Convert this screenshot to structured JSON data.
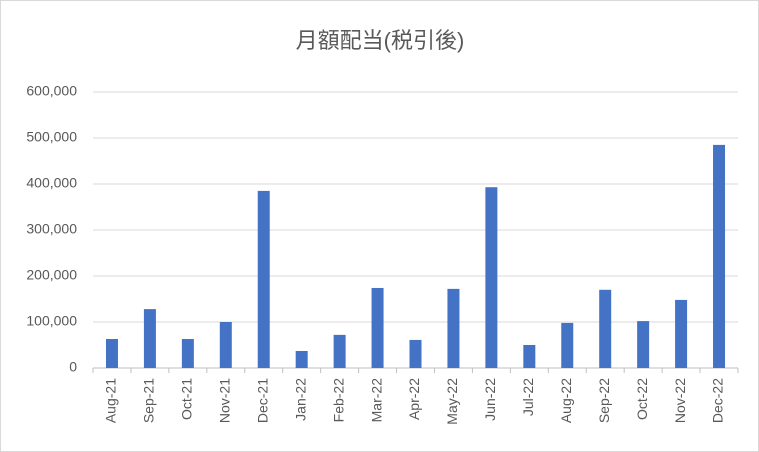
{
  "chart_data": {
    "type": "bar",
    "title": "月額配当(税引後)",
    "categories": [
      "Aug-21",
      "Sep-21",
      "Oct-21",
      "Nov-21",
      "Dec-21",
      "Jan-22",
      "Feb-22",
      "Mar-22",
      "Apr-22",
      "May-22",
      "Jun-22",
      "Jul-22",
      "Aug-22",
      "Sep-22",
      "Oct-22",
      "Nov-22",
      "Dec-22"
    ],
    "values": [
      63000,
      128000,
      63000,
      100000,
      385000,
      37000,
      72000,
      174000,
      61000,
      172000,
      393000,
      50000,
      98000,
      170000,
      102000,
      148000,
      485000
    ],
    "color": "#4472c4",
    "ylim": [
      0,
      600000
    ],
    "yticks": [
      {
        "value": 0,
        "label": "0"
      },
      {
        "value": 100000,
        "label": "100,000"
      },
      {
        "value": 200000,
        "label": "200,000"
      },
      {
        "value": 300000,
        "label": "300,000"
      },
      {
        "value": 400000,
        "label": "400,000"
      },
      {
        "value": 500000,
        "label": "500,000"
      },
      {
        "value": 600000,
        "label": "600,000"
      }
    ],
    "grid": true
  }
}
